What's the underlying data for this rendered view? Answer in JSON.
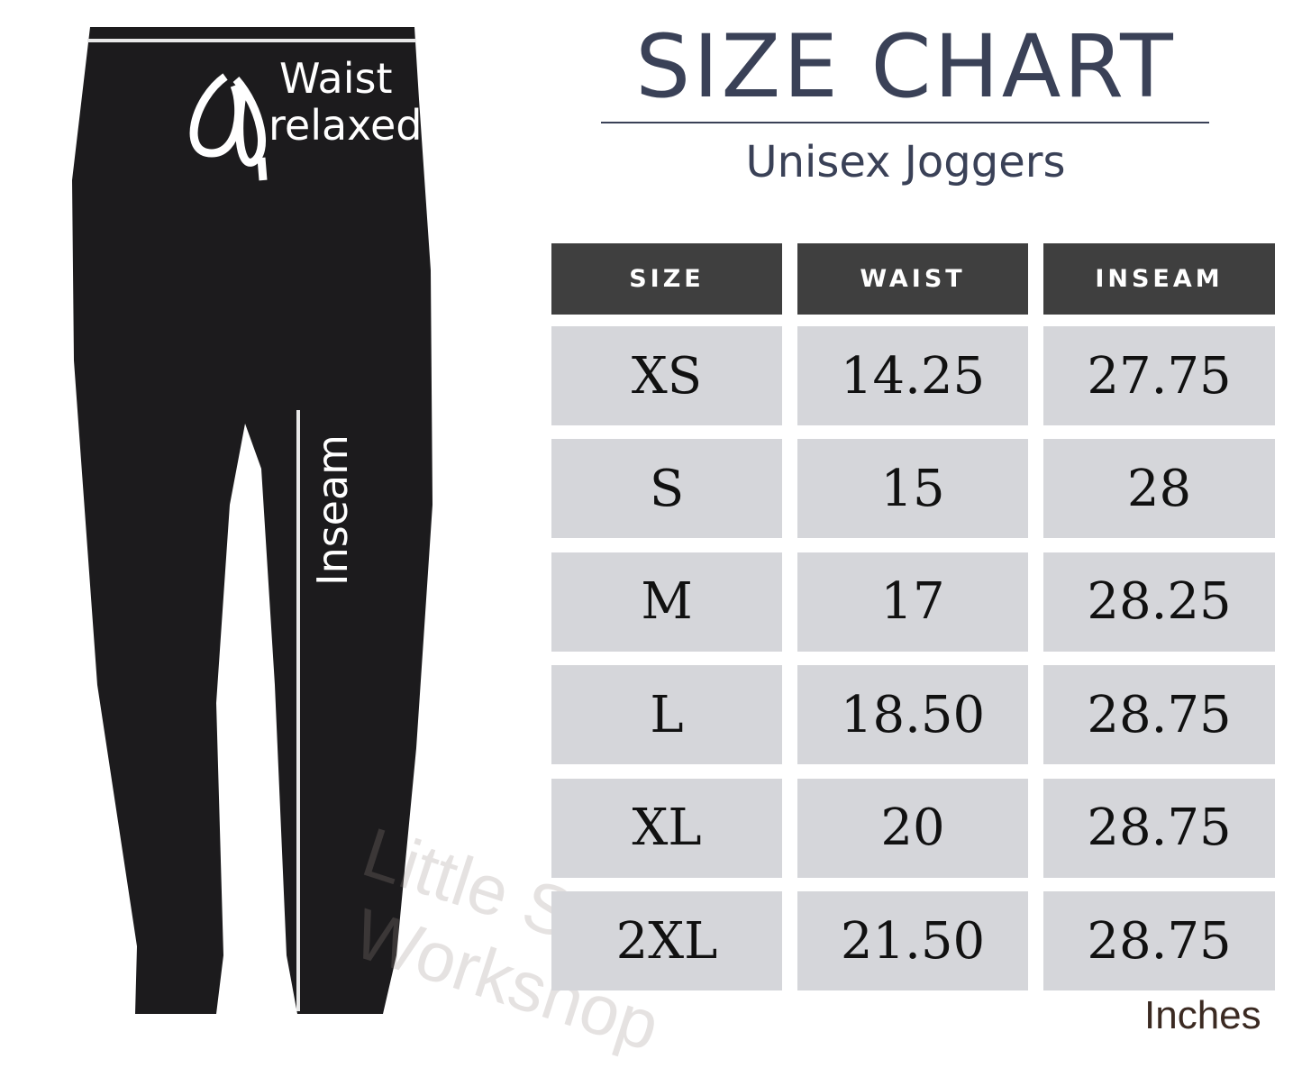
{
  "header": {
    "title": "SIZE CHART",
    "subtitle": "Unisex Joggers"
  },
  "diagram_labels": {
    "waist_line1": "Waist",
    "waist_line2": "relaxed",
    "inseam": "Inseam"
  },
  "table": {
    "columns": [
      "SIZE",
      "WAIST",
      "INSEAM"
    ],
    "rows": [
      [
        "XS",
        "14.25",
        "27.75"
      ],
      [
        "S",
        "15",
        "28"
      ],
      [
        "M",
        "17",
        "28.25"
      ],
      [
        "L",
        "18.50",
        "28.75"
      ],
      [
        "XL",
        "20",
        "28.75"
      ],
      [
        "2XL",
        "21.50",
        "28.75"
      ]
    ]
  },
  "units": "Inches",
  "watermark": {
    "line1": "Little Swan",
    "line2": "Workshop"
  },
  "colors": {
    "title": "#3a4157",
    "header_bg": "#3f3f3f",
    "cell_bg": "#d5d6da",
    "pants": "#1c1b1d"
  }
}
